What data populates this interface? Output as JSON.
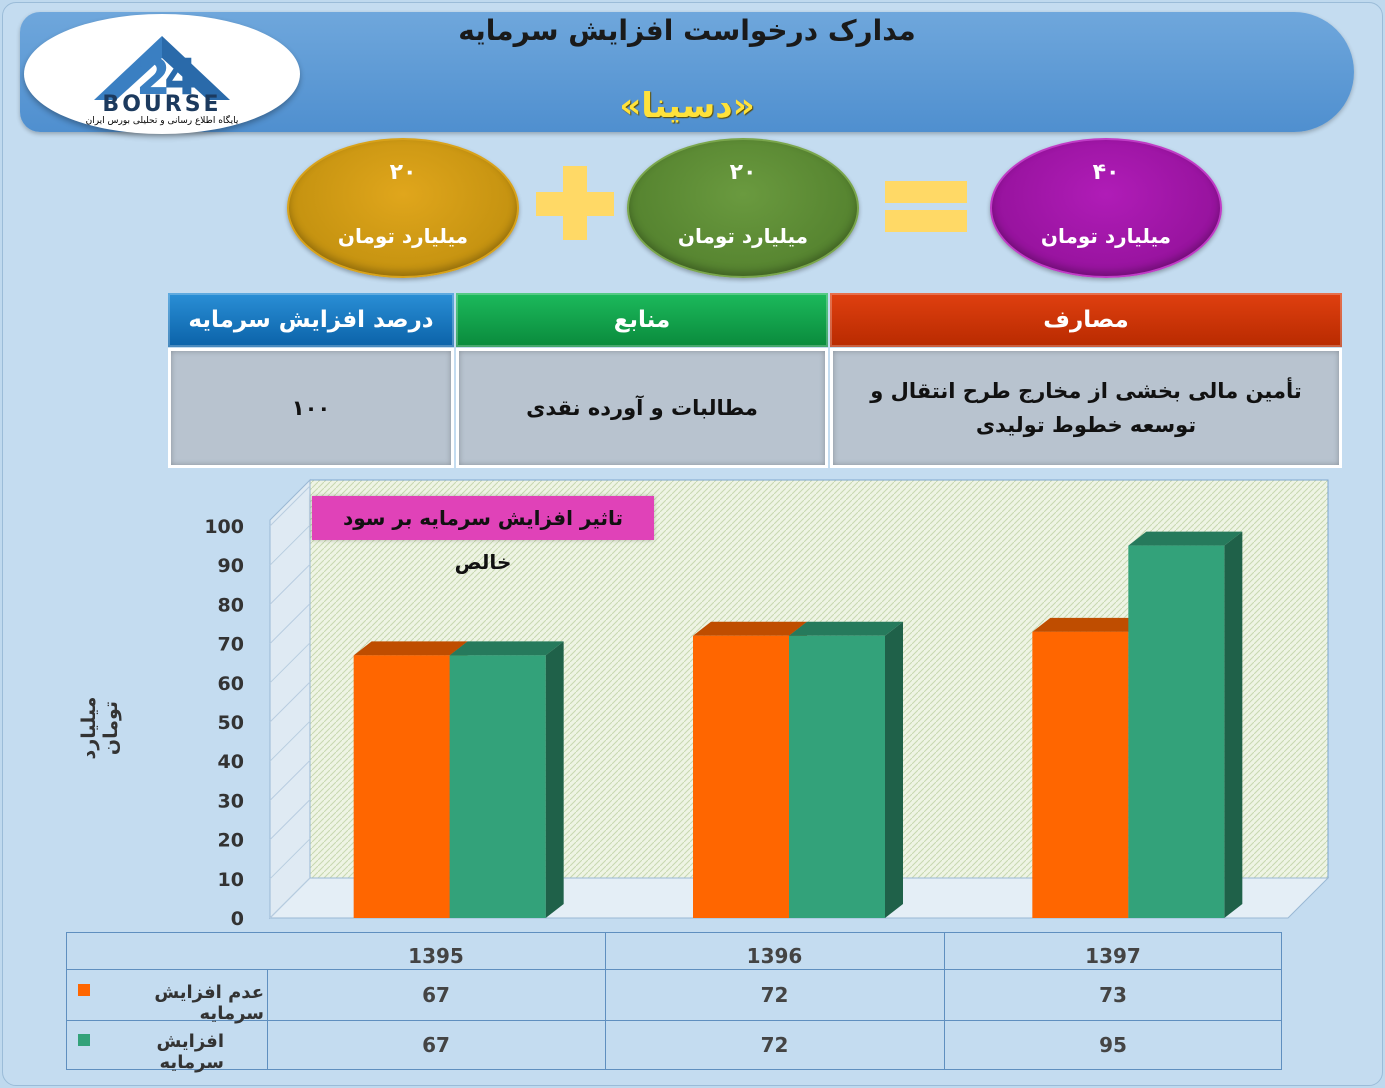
{
  "header": {
    "title": "مدارک درخواست افزایش سرمایه",
    "subtitle": "«دسینا»"
  },
  "logo": {
    "word": "BOURSE",
    "tagline": "پایگاه اطلاع رسانی و تحلیلی بورس ایران"
  },
  "equation": {
    "left": {
      "value": "۲۰",
      "unit": "میلیارد تومان"
    },
    "middle": {
      "value": "۲۰",
      "unit": "میلیارد تومان"
    },
    "right": {
      "value": "۴۰",
      "unit": "میلیارد تومان"
    }
  },
  "info_table": {
    "headers": {
      "percent": "درصد افزایش سرمایه",
      "sources": "منابع",
      "uses": "مصارف"
    },
    "values": {
      "percent": "۱۰۰",
      "sources": "مطالبات و آورده نقدی",
      "uses": "تأمین مالی بخشی از مخارج طرح انتقال و توسعه خطوط تولیدی"
    }
  },
  "chart_data": {
    "type": "bar",
    "title": "تاثیر افزایش سرمایه بر سود خالص",
    "ylabel": "میلیارد تومان",
    "categories": [
      "1395",
      "1396",
      "1397"
    ],
    "series": [
      {
        "name": "عدم افزایش سرمایه",
        "values": [
          67,
          72,
          73
        ],
        "color": "#ff6600"
      },
      {
        "name": "افزایش سرمایه",
        "values": [
          67,
          72,
          95
        ],
        "color": "#33a27a"
      }
    ],
    "ylim": [
      0,
      100
    ],
    "yticks": [
      0,
      10,
      20,
      30,
      40,
      50,
      60,
      70,
      80,
      90,
      100
    ],
    "value_labels": [
      [
        "67",
        "72",
        "73"
      ],
      [
        "67",
        "72",
        "95"
      ]
    ],
    "grid": false
  }
}
